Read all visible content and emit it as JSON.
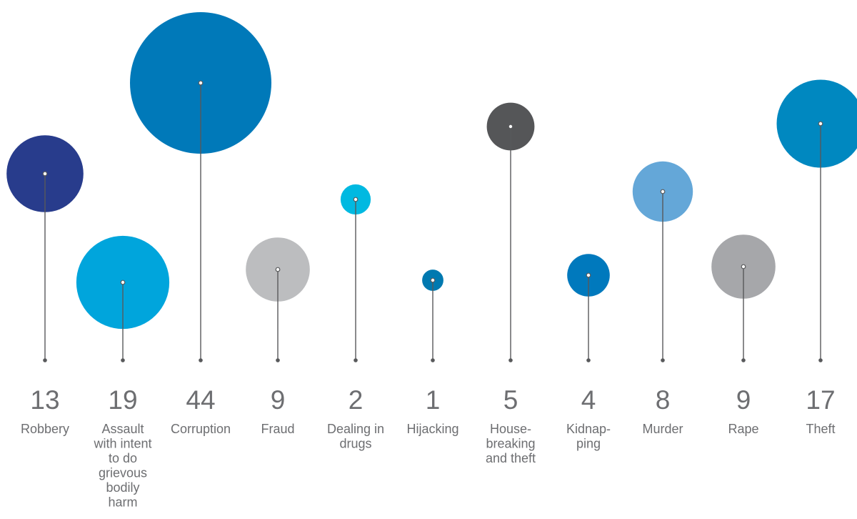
{
  "chart_data": {
    "type": "bubble",
    "title": "",
    "xlabel": "",
    "ylabel": "",
    "grid": false,
    "legend": "none",
    "categories": [
      "Robbery",
      "Assault with intent to do grievous bodily harm",
      "Corruption",
      "Fraud",
      "Dealing in drugs",
      "Hijacking",
      "House-breaking and theft",
      "Kidnapping",
      "Murder",
      "Rape",
      "Theft"
    ],
    "label_lines": [
      [
        "Robbery"
      ],
      [
        "Assault",
        "with intent",
        "to do",
        "grievous",
        "bodily",
        "harm"
      ],
      [
        "Corruption"
      ],
      [
        "Fraud"
      ],
      [
        "Dealing in",
        "drugs"
      ],
      [
        "Hijacking"
      ],
      [
        "House-",
        "breaking",
        "and theft"
      ],
      [
        "Kidnap-",
        "ping"
      ],
      [
        "Murder"
      ],
      [
        "Rape"
      ],
      [
        "Theft"
      ]
    ],
    "values": [
      13,
      19,
      44,
      9,
      2,
      1,
      5,
      4,
      8,
      9,
      17
    ],
    "value_labels": [
      "13",
      "19",
      "44",
      "9",
      "2",
      "1",
      "5",
      "4",
      "8",
      "9",
      "17"
    ],
    "colors": [
      "#283c8c",
      "#00a5dc",
      "#0079b9",
      "#bcbdbf",
      "#00b9e1",
      "#0079b0",
      "#555658",
      "#0079bd",
      "#64a7d8",
      "#a6a7aa",
      "#0088c0"
    ]
  }
}
